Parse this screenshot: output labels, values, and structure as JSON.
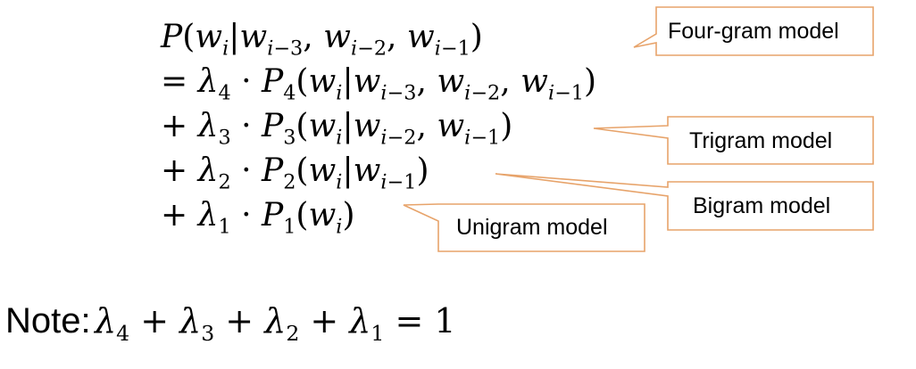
{
  "equation_lines": [
    "P(w_i | w_{i−3}, w_{i−2}, w_{i−1})",
    "= λ_4 · P_4(w_i | w_{i−3}, w_{i−2}, w_{i−1})",
    "+ λ_3 · P_3(w_i | w_{i−2}, w_{i−1})",
    "+ λ_2 · P_2(w_i | w_{i−1})",
    "+ λ_1 · P_1(w_i)"
  ],
  "callouts": {
    "four_gram": "Four-gram model",
    "trigram": "Trigram model",
    "bigram": "Bigram model",
    "unigram": "Unigram model"
  },
  "note": {
    "label": "Note:",
    "equation": "λ_4 + λ_3 + λ_2 + λ_1 = 1"
  },
  "colors": {
    "callout_border": "#e7a36a",
    "text": "#000000",
    "background": "#ffffff"
  }
}
